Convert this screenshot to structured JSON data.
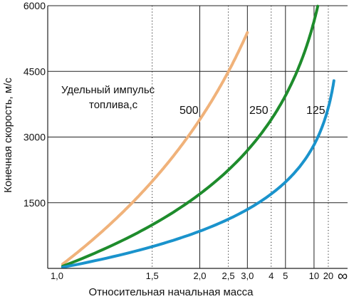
{
  "chart_data": {
    "type": "line",
    "xlabel": "Относительная начальная масса",
    "ylabel": "Конечная скорость, м/с",
    "x_scale": "1 - 1/x",
    "ylim": [
      0,
      6000
    ],
    "y_ticks": [
      {
        "value": 1500,
        "label": "1500"
      },
      {
        "value": 3000,
        "label": "3000"
      },
      {
        "value": 4500,
        "label": "4500"
      },
      {
        "value": 6000,
        "label": "6000"
      }
    ],
    "x_ticks": [
      {
        "value": 1.0,
        "label": "1,0",
        "grid": false
      },
      {
        "value": 1.5,
        "label": "1,5",
        "grid": "dotted"
      },
      {
        "value": 2.0,
        "label": "2,0",
        "grid": "solid"
      },
      {
        "value": 2.5,
        "label": "2,5",
        "grid": "dotted"
      },
      {
        "value": 3.0,
        "label": "3,0",
        "grid": "solid"
      },
      {
        "value": 4.0,
        "label": "4",
        "grid": "dotted"
      },
      {
        "value": 5.0,
        "label": "5",
        "grid": "solid"
      },
      {
        "value": 10.0,
        "label": "10",
        "grid": "solid"
      },
      {
        "value": 20.0,
        "label": "20",
        "grid": "dotted"
      },
      {
        "value": "inf",
        "label": "∞",
        "grid": false
      }
    ],
    "annotation": [
      "Удельный импульс",
      "топлива,с"
    ],
    "series": [
      {
        "name": "500",
        "color": "#f0b27a",
        "isp": 500,
        "x_end": 3.0
      },
      {
        "name": "250",
        "color": "#1e8c2c",
        "isp": 250,
        "x_end": 11.5
      },
      {
        "name": "125",
        "color": "#1a93cc",
        "isp": 125,
        "x_end": 33
      }
    ]
  }
}
